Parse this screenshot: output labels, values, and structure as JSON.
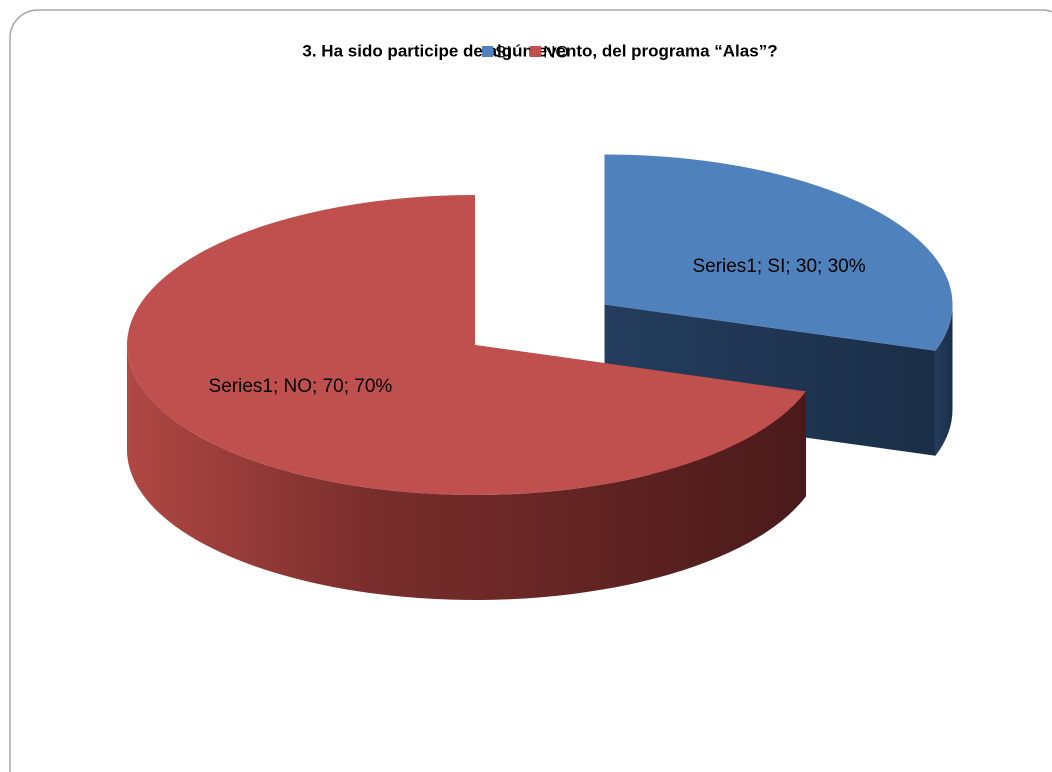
{
  "chart_data": {
    "type": "pie",
    "title": "3. Ha sido participe de algún evento, del programa “Alas”?",
    "categories": [
      "SI",
      "NO"
    ],
    "series": [
      {
        "name": "Series1",
        "colors": [
          "#4f81bd",
          "#c0504d"
        ],
        "values": [
          30,
          70
        ],
        "value_labels": [
          "Series1; SI; 30; 30%",
          "Series1;  NO; 70; 70%"
        ]
      }
    ],
    "legend": "top"
  }
}
